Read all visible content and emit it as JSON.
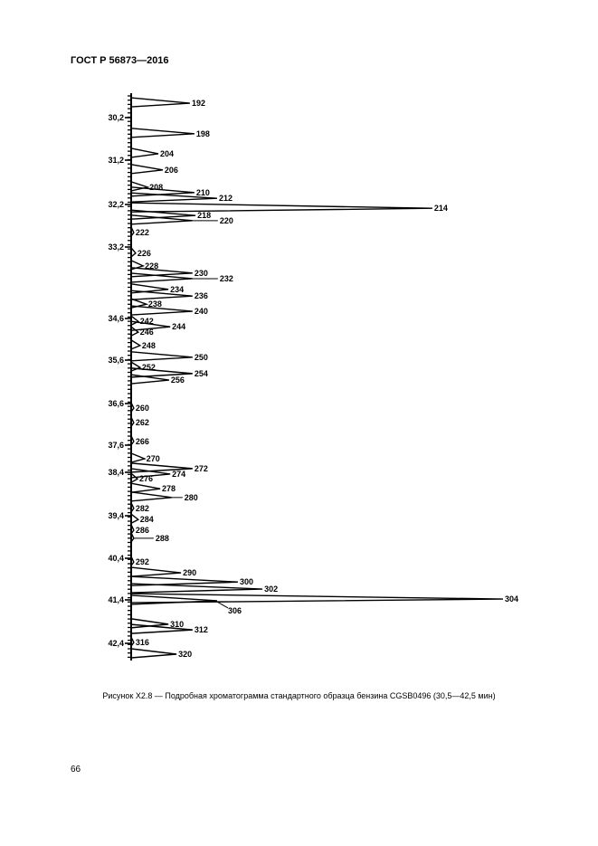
{
  "header": {
    "standard": "ГОСТ Р 56873—2016"
  },
  "figure": {
    "caption": "Рисунок X2.8 — Подробная хроматограмма стандартного образца бензина CGSB0496 (30,5—42,5 мин)"
  },
  "page_number": "66",
  "chart_data": {
    "type": "line",
    "orientation": "vertical time axis",
    "xlabel": "",
    "ylabel": "",
    "axis_ticks": [
      {
        "t": 30.2,
        "label": "30,2"
      },
      {
        "t": 31.2,
        "label": "31,2"
      },
      {
        "t": 32.2,
        "label": "32,2"
      },
      {
        "t": 33.2,
        "label": "33,2"
      },
      {
        "t": 34.6,
        "label": "34,6"
      },
      {
        "t": 35.6,
        "label": "35,6"
      },
      {
        "t": 36.6,
        "label": "36,6"
      },
      {
        "t": 37.6,
        "label": "37,6"
      },
      {
        "t": 38.4,
        "label": "38,4"
      },
      {
        "t": 39.4,
        "label": "39,4"
      },
      {
        "t": 40.4,
        "label": "40,4"
      },
      {
        "t": 41.4,
        "label": "41,4"
      },
      {
        "t": 42.4,
        "label": "42,4"
      }
    ],
    "peaks": [
      {
        "label": "192",
        "t": 29.86,
        "h": 15.8
      },
      {
        "label": "198",
        "t": 30.58,
        "h": 17.0
      },
      {
        "label": "204",
        "t": 31.05,
        "h": 7.3
      },
      {
        "label": "206",
        "t": 31.42,
        "h": 8.5
      },
      {
        "label": "208",
        "t": 31.81,
        "h": 4.4
      },
      {
        "label": "210",
        "t": 31.93,
        "h": 17.0
      },
      {
        "label": "212",
        "t": 32.06,
        "h": 23.1
      },
      {
        "label": "214",
        "t": 32.29,
        "h": 81.0
      },
      {
        "label": "218",
        "t": 32.46,
        "h": 17.3
      },
      {
        "label": "220",
        "t": 32.58,
        "h": 16.5
      },
      {
        "label": "222",
        "t": 32.86,
        "h": 0.7
      },
      {
        "label": "226",
        "t": 33.32,
        "h": 1.2
      },
      {
        "label": "228",
        "t": 33.57,
        "h": 3.2
      },
      {
        "label": "230",
        "t": 33.71,
        "h": 16.5
      },
      {
        "label": "232",
        "t": 33.82,
        "h": 16.5
      },
      {
        "label": "234",
        "t": 34.03,
        "h": 10.0
      },
      {
        "label": "236",
        "t": 34.16,
        "h": 16.5
      },
      {
        "label": "238",
        "t": 34.32,
        "h": 4.1
      },
      {
        "label": "240",
        "t": 34.46,
        "h": 16.5
      },
      {
        "label": "242",
        "t": 34.67,
        "h": 1.9
      },
      {
        "label": "244",
        "t": 34.8,
        "h": 10.5
      },
      {
        "label": "246",
        "t": 34.93,
        "h": 1.9
      },
      {
        "label": "248",
        "t": 35.25,
        "h": 2.4
      },
      {
        "label": "250",
        "t": 35.53,
        "h": 16.5
      },
      {
        "label": "252",
        "t": 35.77,
        "h": 2.4
      },
      {
        "label": "254",
        "t": 35.91,
        "h": 16.5
      },
      {
        "label": "256",
        "t": 36.06,
        "h": 10.2
      },
      {
        "label": "260",
        "t": 36.71,
        "h": 0.7
      },
      {
        "label": "262",
        "t": 37.06,
        "h": 0.7
      },
      {
        "label": "266",
        "t": 37.51,
        "h": 0.7
      },
      {
        "label": "270",
        "t": 38.0,
        "h": 3.6
      },
      {
        "label": "272",
        "t": 38.29,
        "h": 16.5
      },
      {
        "label": "274",
        "t": 38.44,
        "h": 10.5
      },
      {
        "label": "276",
        "t": 38.55,
        "h": 1.7
      },
      {
        "label": "278",
        "t": 38.78,
        "h": 7.8
      },
      {
        "label": "280",
        "t": 38.98,
        "h": 10.9
      },
      {
        "label": "282",
        "t": 39.23,
        "h": 0.7
      },
      {
        "label": "284",
        "t": 39.49,
        "h": 1.9
      },
      {
        "label": "286",
        "t": 39.74,
        "h": 0.7
      },
      {
        "label": "288",
        "t": 39.93,
        "h": 0.7
      },
      {
        "label": "292",
        "t": 40.49,
        "h": 0.7
      },
      {
        "label": "290",
        "t": 40.75,
        "h": 13.4
      },
      {
        "label": "300",
        "t": 40.97,
        "h": 28.7
      },
      {
        "label": "302",
        "t": 41.14,
        "h": 35.3
      },
      {
        "label": "304",
        "t": 41.38,
        "h": 100
      },
      {
        "label": "306",
        "t": 41.42,
        "h": 23.1
      },
      {
        "label": "310",
        "t": 41.96,
        "h": 10.0
      },
      {
        "label": "312",
        "t": 42.09,
        "h": 16.5
      },
      {
        "label": "316",
        "t": 42.38,
        "h": 0.7
      },
      {
        "label": "320",
        "t": 42.65,
        "h": 12.2
      }
    ]
  }
}
